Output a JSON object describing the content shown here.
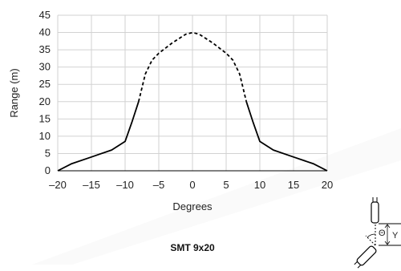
{
  "chart_data": {
    "type": "line",
    "title": "",
    "xlabel": "Degrees",
    "ylabel": "Range (m)",
    "xlim": [
      -20,
      20
    ],
    "ylim": [
      0,
      45
    ],
    "xticks": [
      "–20",
      "–15",
      "–10",
      "–5",
      "0",
      "5",
      "10",
      "15",
      "20"
    ],
    "yticks": [
      "0",
      "5",
      "10",
      "15",
      "20",
      "25",
      "30",
      "35",
      "40",
      "45"
    ],
    "grid": true,
    "legend": "none",
    "series": [
      {
        "style": "solid",
        "color": "#000000",
        "points": [
          [
            -20,
            0
          ],
          [
            -18,
            2
          ],
          [
            -15,
            4
          ],
          [
            -12,
            6
          ],
          [
            -10,
            8.5
          ],
          [
            -9,
            14
          ],
          [
            -8,
            20
          ]
        ]
      },
      {
        "style": "dashed",
        "color": "#000000",
        "points": [
          [
            -8,
            20
          ],
          [
            -7,
            28
          ],
          [
            -6,
            32
          ],
          [
            -5,
            34
          ],
          [
            -3,
            37
          ],
          [
            -1,
            39.5
          ],
          [
            0,
            40
          ],
          [
            1,
            39.5
          ],
          [
            3,
            37
          ],
          [
            5,
            34
          ],
          [
            6,
            32
          ],
          [
            7,
            28
          ],
          [
            8,
            20
          ]
        ]
      },
      {
        "style": "solid",
        "color": "#000000",
        "points": [
          [
            8,
            20
          ],
          [
            9,
            14
          ],
          [
            10,
            8.5
          ],
          [
            12,
            6
          ],
          [
            15,
            4
          ],
          [
            18,
            2
          ],
          [
            20,
            0
          ]
        ]
      }
    ],
    "caption": "SMT 9x20"
  },
  "diagram": {
    "angle_label": "Θ",
    "distance_label": "Y"
  },
  "colors": {
    "grid": "#d2d2d2",
    "line": "#000000"
  }
}
